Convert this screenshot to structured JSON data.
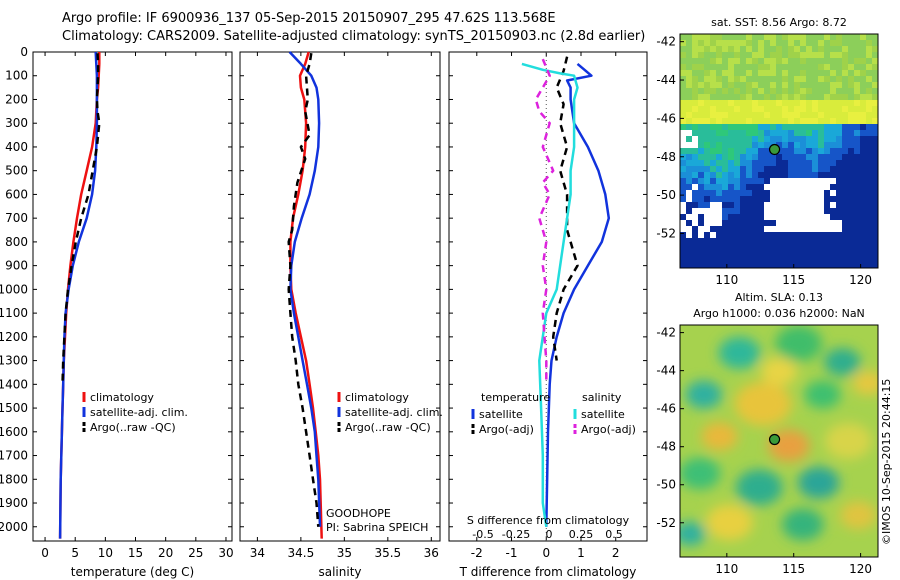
{
  "title": {
    "line1": "Argo profile: IF 6900936_137 05-Sep-2015 20150907_295 47.62S 113.568E",
    "line2": "Climatology: CARS2009. Satellite-adjusted climatology: synTS_20150903.nc (2.8d earlier)"
  },
  "copyright": "©IMOS 10-Sep-2015 20:44:15",
  "colors": {
    "climatology": "#ee1111",
    "satellite": "#1133dd",
    "argo": "#000000",
    "satellite_s": "#22dddd",
    "argo_s": "#dd22dd"
  },
  "chart_data": [
    {
      "type": "line",
      "xlabel": "temperature (deg C)",
      "ylabel": "",
      "xlim": [
        -2,
        31
      ],
      "ylim": [
        2060,
        0
      ],
      "xticks": [
        "0",
        "5",
        "10",
        "15",
        "20",
        "25",
        "30"
      ],
      "yticks": [
        "0",
        "100",
        "200",
        "300",
        "400",
        "500",
        "600",
        "700",
        "800",
        "900",
        "1000",
        "1100",
        "1200",
        "1300",
        "1400",
        "1500",
        "1600",
        "1700",
        "1800",
        "1900",
        "2000"
      ],
      "legend": [
        "climatology",
        "satellite-adj. clim.",
        "Argo(..raw -QC)"
      ],
      "legend_placement": "lower-right",
      "series": [
        {
          "name": "climatology",
          "style": "solid",
          "color": "#ee1111",
          "x": [
            9.0,
            9.0,
            8.9,
            8.8,
            8.6,
            8.4,
            7.8,
            6.9,
            6.0,
            5.3,
            4.7,
            4.2,
            3.8,
            3.5,
            3.3,
            3.1,
            3.0,
            2.9,
            2.8,
            2.7,
            2.6,
            2.5
          ],
          "y": [
            0,
            50,
            100,
            150,
            200,
            300,
            400,
            500,
            600,
            700,
            800,
            900,
            1000,
            1100,
            1200,
            1300,
            1400,
            1500,
            1600,
            1700,
            1800,
            2050
          ]
        },
        {
          "name": "satellite-adj. clim.",
          "style": "solid",
          "color": "#1133dd",
          "x": [
            8.4,
            8.5,
            8.6,
            8.6,
            8.6,
            8.6,
            8.5,
            8.3,
            7.8,
            6.9,
            5.6,
            4.6,
            3.9,
            3.4,
            3.2,
            3.1,
            3.0,
            2.9,
            2.8,
            2.7,
            2.6,
            2.5
          ],
          "y": [
            0,
            50,
            100,
            150,
            200,
            300,
            400,
            500,
            600,
            700,
            800,
            900,
            1000,
            1100,
            1200,
            1300,
            1400,
            1500,
            1600,
            1700,
            1800,
            2050
          ]
        },
        {
          "name": "Argo(..raw -QC)",
          "style": "dashed",
          "color": "#000000",
          "x": [
            8.7,
            8.8,
            8.8,
            8.6,
            8.7,
            9.0,
            8.6,
            7.9,
            7.2,
            6.0,
            5.1,
            4.4,
            3.8,
            3.4,
            3.2,
            3.0,
            2.9
          ],
          "y": [
            5,
            50,
            100,
            200,
            250,
            300,
            400,
            500,
            600,
            700,
            800,
            900,
            1000,
            1100,
            1200,
            1300,
            1400
          ]
        }
      ]
    },
    {
      "type": "line",
      "xlabel": "salinity",
      "xlim": [
        33.8,
        36.1
      ],
      "ylim": [
        2060,
        0
      ],
      "xticks": [
        "34",
        "34.5",
        "35",
        "35.5",
        "36"
      ],
      "legend": [
        "climatology",
        "satellite-adj. clim.",
        "Argo(..raw -QC)"
      ],
      "legend_placement": "lower-right",
      "annotation": [
        "GOODHOPE",
        "PI: Sabrina SPEICH"
      ],
      "series": [
        {
          "name": "climatology",
          "style": "solid",
          "color": "#ee1111",
          "x": [
            34.59,
            34.55,
            34.49,
            34.5,
            34.54,
            34.56,
            34.55,
            34.52,
            34.47,
            34.41,
            34.38,
            34.38,
            34.39,
            34.44,
            34.5,
            34.56,
            34.6,
            34.64,
            34.67,
            34.7,
            34.72,
            34.74
          ],
          "y": [
            0,
            50,
            100,
            150,
            200,
            300,
            400,
            500,
            600,
            700,
            800,
            900,
            1000,
            1100,
            1200,
            1300,
            1400,
            1500,
            1600,
            1700,
            1800,
            2050
          ]
        },
        {
          "name": "satellite-adj. clim.",
          "style": "solid",
          "color": "#1133dd",
          "x": [
            34.37,
            34.5,
            34.62,
            34.68,
            34.7,
            34.71,
            34.7,
            34.66,
            34.6,
            34.51,
            34.43,
            34.39,
            34.38,
            34.42,
            34.47,
            34.52,
            34.57,
            34.62,
            34.66,
            34.68,
            34.7,
            34.72
          ],
          "y": [
            0,
            50,
            100,
            150,
            200,
            300,
            400,
            500,
            600,
            700,
            800,
            900,
            1000,
            1100,
            1200,
            1300,
            1400,
            1500,
            1600,
            1700,
            1800,
            2000
          ]
        },
        {
          "name": "Argo(..raw -QC)",
          "style": "dashed",
          "color": "#000000",
          "x": [
            34.62,
            34.6,
            34.56,
            34.58,
            34.55,
            34.6,
            34.5,
            34.55,
            34.46,
            34.42,
            34.4,
            34.36,
            34.38,
            34.36,
            34.38,
            34.4,
            34.44,
            34.47,
            34.52,
            34.56,
            34.6,
            34.64,
            34.68,
            34.7
          ],
          "y": [
            5,
            50,
            100,
            200,
            250,
            350,
            400,
            450,
            550,
            650,
            750,
            800,
            900,
            1000,
            1100,
            1200,
            1300,
            1400,
            1500,
            1600,
            1700,
            1800,
            1900,
            2000
          ]
        }
      ]
    },
    {
      "type": "line",
      "xlabel": "T difference from climatology",
      "top_xlabel": "S difference from climatology",
      "xlim": [
        -2.8,
        2.9
      ],
      "ylim": [
        2060,
        0
      ],
      "xticks": [
        "-2",
        "-1",
        "0",
        "1",
        "2"
      ],
      "top_xticks": [
        "-0.5",
        "-0.25",
        "0",
        "0.25",
        "0.5"
      ],
      "legend_headers": [
        "temperature",
        "salinity"
      ],
      "legend": [
        "satellite",
        "Argo(-adj)",
        "satellite",
        "Argo(-adj)"
      ],
      "legend_placement": "lower-center",
      "series": [
        {
          "name": "satellite",
          "group": "temperature",
          "style": "solid",
          "color": "#1133dd",
          "x": [
            0.9,
            1.1,
            1.3,
            0.6,
            0.7,
            0.7,
            0.8,
            1.2,
            1.5,
            1.7,
            1.8,
            1.6,
            1.2,
            0.8,
            0.5,
            0.3,
            0.15,
            0.1,
            0.05,
            0.0
          ],
          "y": [
            50,
            75,
            100,
            120,
            150,
            200,
            300,
            400,
            500,
            600,
            700,
            800,
            900,
            1000,
            1100,
            1200,
            1300,
            1400,
            1600,
            2000
          ]
        },
        {
          "name": "Argo(-adj)",
          "group": "temperature",
          "style": "dashed",
          "color": "#000000",
          "x": [
            0.6,
            0.5,
            0.3,
            0.5,
            0.4,
            0.6,
            0.4,
            0.5,
            0.6,
            0.6,
            0.6,
            0.7,
            0.9,
            0.5,
            0.3,
            0.2,
            0.3
          ],
          "y": [
            20,
            80,
            150,
            220,
            300,
            400,
            500,
            550,
            600,
            700,
            750,
            800,
            900,
            1000,
            1100,
            1200,
            1300
          ]
        },
        {
          "name": "satellite",
          "group": "salinity",
          "style": "solid",
          "color": "#22dddd",
          "x": [
            -0.7,
            -0.1,
            0.4,
            0.8,
            0.9,
            0.8,
            0.8,
            0.8,
            0.7,
            0.7,
            0.5,
            0.3,
            0.0,
            -0.2,
            -0.15,
            -0.1,
            -0.1,
            0.0
          ],
          "y": [
            50,
            75,
            90,
            100,
            150,
            200,
            300,
            400,
            500,
            600,
            800,
            1000,
            1100,
            1300,
            1500,
            1700,
            1900,
            2000
          ]
        },
        {
          "name": "Argo(-adj)",
          "group": "salinity",
          "style": "dashed",
          "color": "#dd22dd",
          "x": [
            -0.1,
            0.1,
            -0.3,
            -0.2,
            0.1,
            -0.1,
            0.2,
            -0.1,
            0.1,
            -0.2,
            0.0,
            -0.1,
            0.0,
            -0.1,
            -0.05,
            0.0,
            0.0
          ],
          "y": [
            30,
            100,
            200,
            250,
            300,
            400,
            500,
            550,
            600,
            700,
            800,
            900,
            1000,
            1100,
            1200,
            1300,
            1400
          ]
        }
      ]
    },
    {
      "type": "heatmap",
      "title": "sat. SST: 8.56 Argo: 8.72",
      "xticks": [
        "110",
        "115",
        "120"
      ],
      "yticks": [
        "-42",
        "-44",
        "-46",
        "-48",
        "-50",
        "-52"
      ],
      "xlim": [
        106.5,
        121.3
      ],
      "ylim": [
        -53.8,
        -41.6
      ],
      "marker": {
        "lon": 113.568,
        "lat": -47.62
      }
    },
    {
      "type": "heatmap",
      "title": [
        "Altim. SLA: 0.13",
        "Argo h1000: 0.036 h2000: NaN"
      ],
      "xticks": [
        "110",
        "115",
        "120"
      ],
      "yticks": [
        "-42",
        "-44",
        "-46",
        "-48",
        "-50",
        "-52"
      ],
      "xlim": [
        106.5,
        121.3
      ],
      "ylim": [
        -53.8,
        -41.6
      ],
      "marker": {
        "lon": 113.568,
        "lat": -47.62
      }
    }
  ]
}
